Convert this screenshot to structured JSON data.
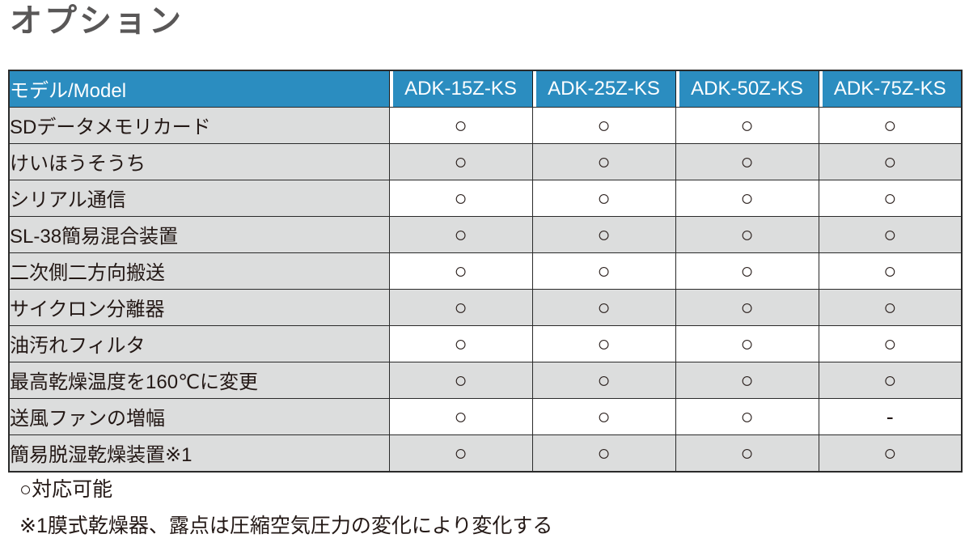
{
  "title": "オプション",
  "table": {
    "label_header": "モデル/Model",
    "model_headers": [
      "ADK-15Z-KS",
      "ADK-25Z-KS",
      "ADK-50Z-KS",
      "ADK-75Z-KS"
    ],
    "available_mark": "○",
    "not_available_mark": "-",
    "rows": [
      {
        "label": "SDデータメモリカード",
        "cells": [
          "○",
          "○",
          "○",
          "○"
        ]
      },
      {
        "label": "けいほうそうち",
        "cells": [
          "○",
          "○",
          "○",
          "○"
        ]
      },
      {
        "label": "シリアル通信",
        "cells": [
          "○",
          "○",
          "○",
          "○"
        ]
      },
      {
        "label": "SL-38簡易混合装置",
        "cells": [
          "○",
          "○",
          "○",
          "○"
        ]
      },
      {
        "label": "二次側二方向搬送",
        "cells": [
          "○",
          "○",
          "○",
          "○"
        ]
      },
      {
        "label": "サイクロン分離器",
        "cells": [
          "○",
          "○",
          "○",
          "○"
        ]
      },
      {
        "label": "油汚れフィルタ",
        "cells": [
          "○",
          "○",
          "○",
          "○"
        ]
      },
      {
        "label": "最高乾燥温度を160℃に変更",
        "cells": [
          "○",
          "○",
          "○",
          "○"
        ]
      },
      {
        "label": "送風ファンの増幅",
        "cells": [
          "○",
          "○",
          "○",
          "-"
        ]
      },
      {
        "label": "簡易脱湿乾燥装置※1",
        "cells": [
          "○",
          "○",
          "○",
          "○"
        ]
      }
    ]
  },
  "notes": [
    "○対応可能",
    "※1膜式乾燥器、露点は圧縮空気圧力の変化により変化する"
  ],
  "colors": {
    "header_bg": "#2b8dc0",
    "header_text": "#ffffff",
    "row_alt_bg": "#dcdddd",
    "border": "#2a2a2a",
    "title_text": "#595757",
    "body_text": "#231815"
  }
}
